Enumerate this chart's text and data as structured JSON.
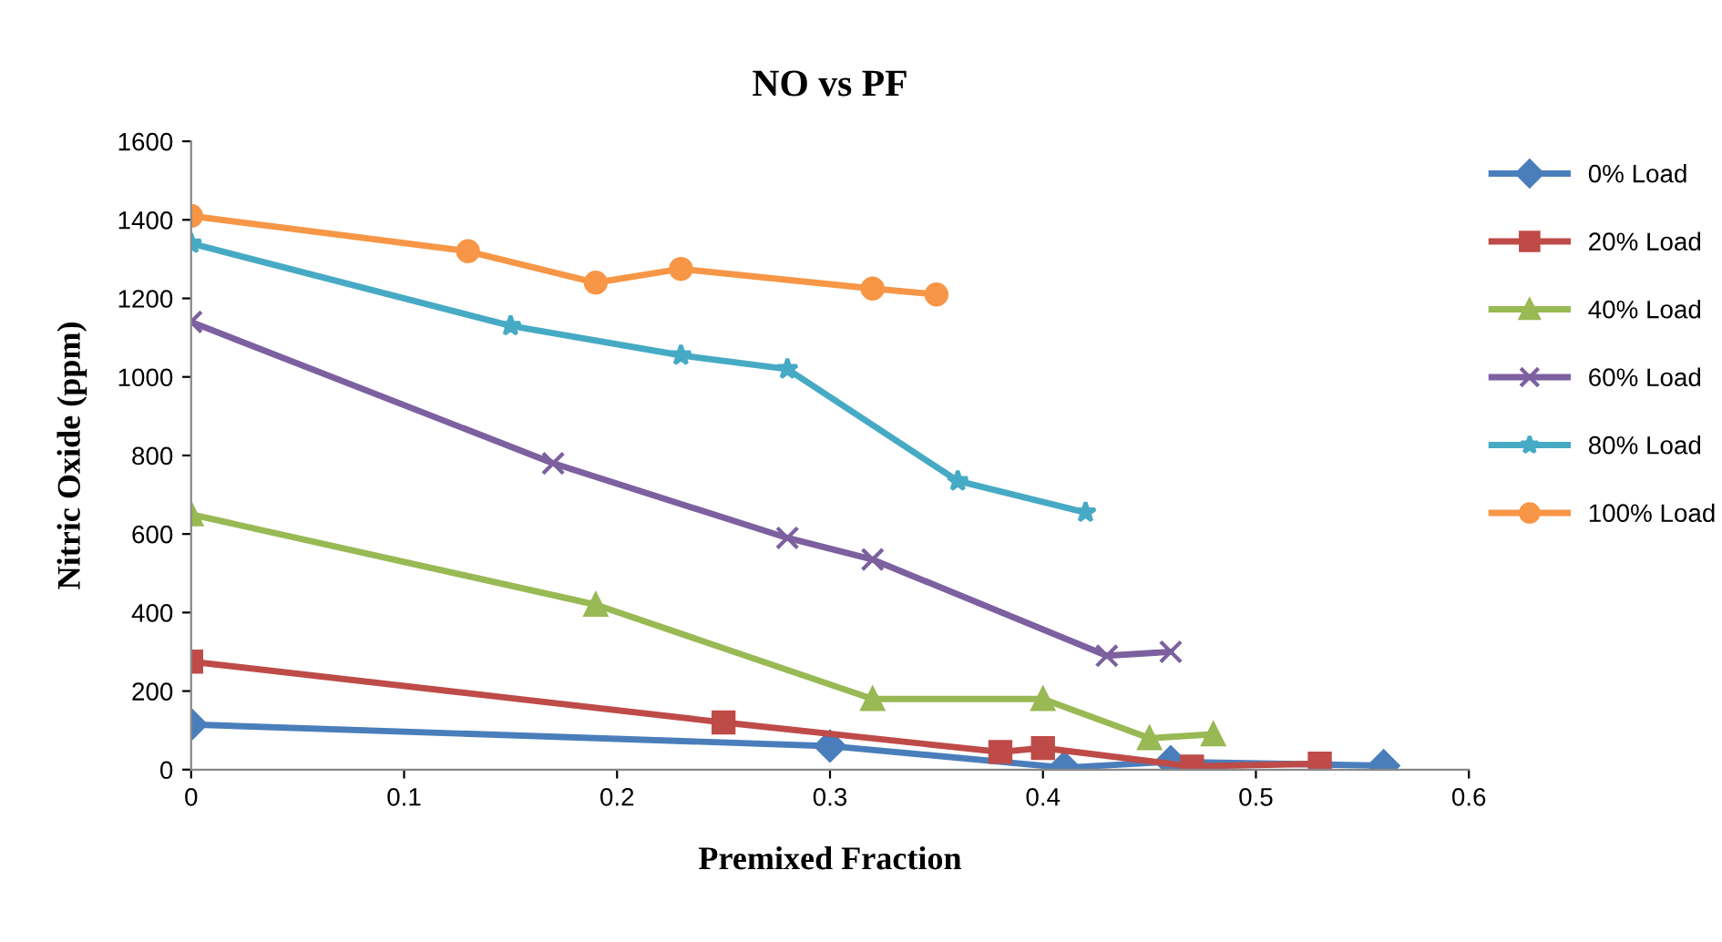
{
  "chart_data": {
    "type": "line",
    "title": "NO vs PF",
    "xlabel": "Premixed Fraction",
    "ylabel": "Nitric Oxide (ppm)",
    "xlim": [
      0,
      0.6
    ],
    "xticks": [
      0,
      0.1,
      0.2,
      0.3,
      0.4,
      0.5,
      0.6
    ],
    "ylim": [
      0,
      1600
    ],
    "yticks": [
      0,
      200,
      400,
      600,
      800,
      1000,
      1200,
      1400,
      1600
    ],
    "grid": false,
    "legend": "right",
    "line_style": "solid",
    "series": [
      {
        "name": "0% Load",
        "color": "#4a7ebb",
        "marker": "diamond",
        "x": [
          0,
          0.3,
          0.41,
          0.46,
          0.56
        ],
        "values": [
          115,
          60,
          5,
          20,
          10
        ]
      },
      {
        "name": "20% Load",
        "color": "#be4b48",
        "marker": "square",
        "x": [
          0,
          0.25,
          0.38,
          0.4,
          0.47,
          0.53
        ],
        "values": [
          275,
          120,
          45,
          55,
          8,
          15
        ]
      },
      {
        "name": "40% Load",
        "color": "#98b954",
        "marker": "triangle",
        "x": [
          0,
          0.19,
          0.32,
          0.4,
          0.45,
          0.48
        ],
        "values": [
          650,
          420,
          180,
          180,
          80,
          90
        ]
      },
      {
        "name": "60% Load",
        "color": "#7d60a0",
        "marker": "cross",
        "x": [
          0,
          0.17,
          0.28,
          0.32,
          0.43,
          0.46
        ],
        "values": [
          1140,
          780,
          590,
          535,
          290,
          300
        ]
      },
      {
        "name": "80% Load",
        "color": "#46aac5",
        "marker": "star",
        "x": [
          0,
          0.15,
          0.23,
          0.28,
          0.36,
          0.42
        ],
        "values": [
          1340,
          1130,
          1055,
          1020,
          735,
          655
        ]
      },
      {
        "name": "100% Load",
        "color": "#f79646",
        "marker": "circle",
        "x": [
          0,
          0.13,
          0.19,
          0.23,
          0.32,
          0.35
        ],
        "values": [
          1410,
          1320,
          1240,
          1275,
          1225,
          1210
        ]
      }
    ]
  }
}
